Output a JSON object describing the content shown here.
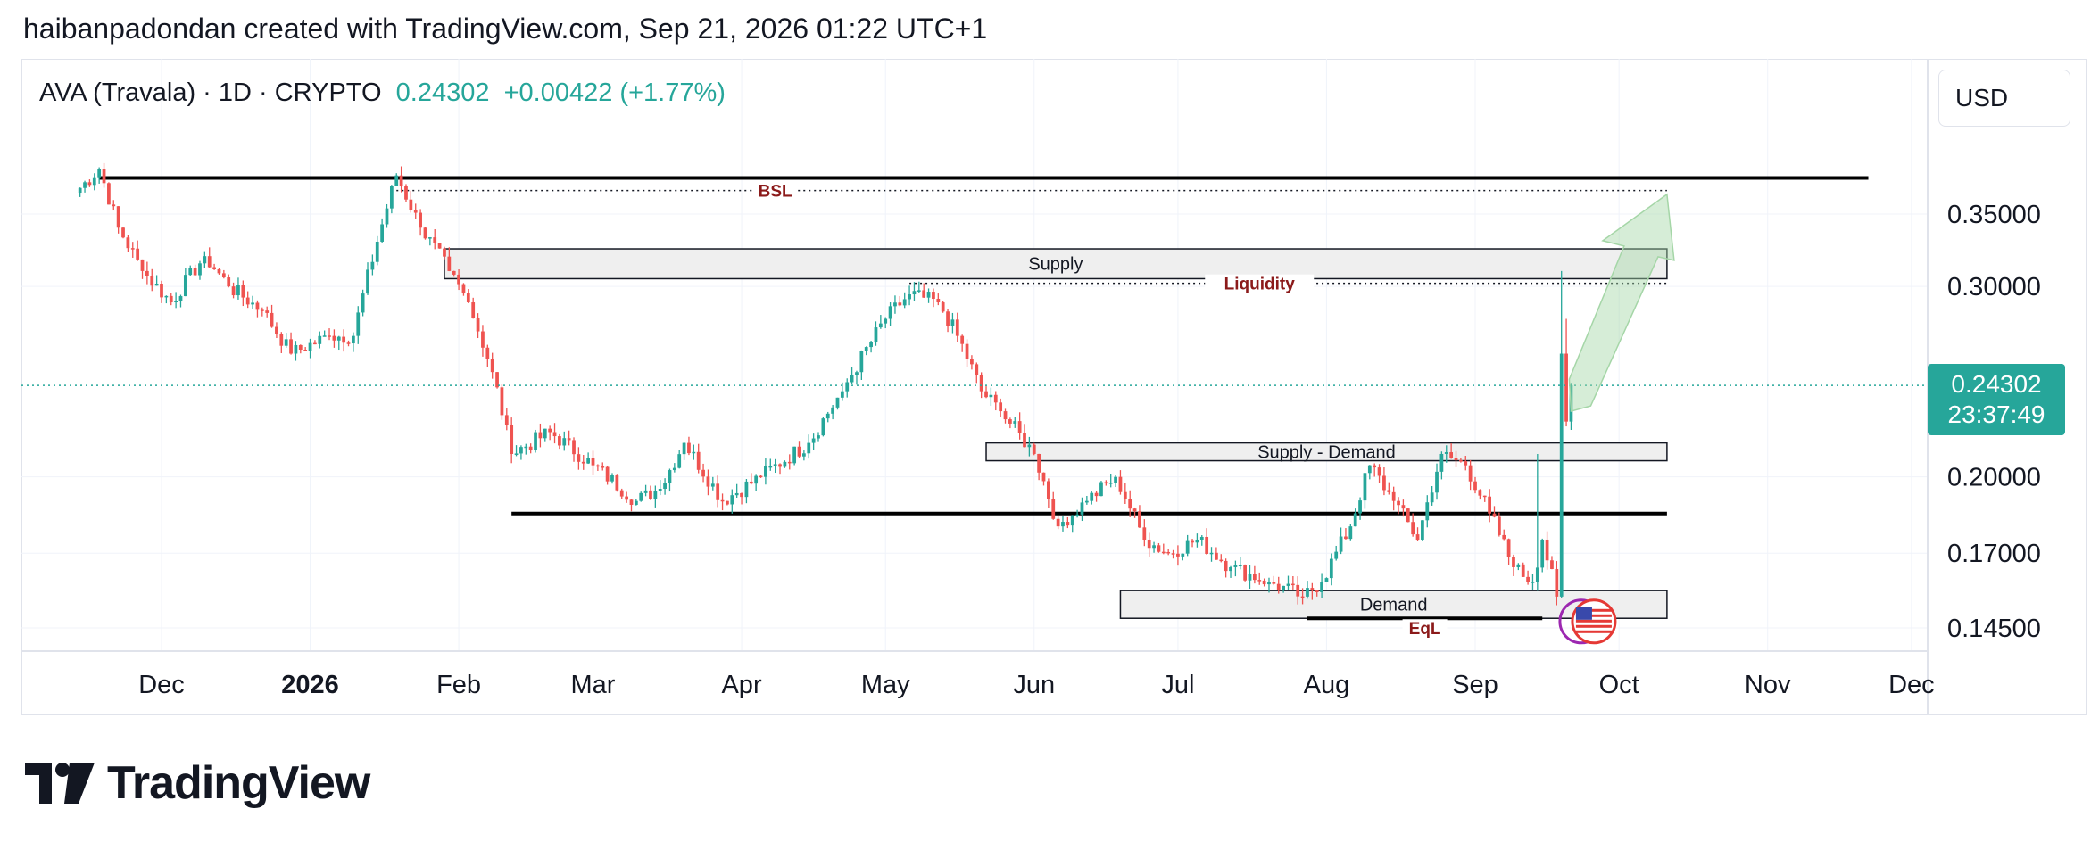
{
  "header": {
    "attribution": "haibanpadondan created with TradingView.com, Sep 21, 2026 01:22 UTC+1"
  },
  "symbol": {
    "name": "AVA (Travala) · 1D · CRYPTO",
    "price": "0.24302",
    "change": "+0.00422 (+1.77%)"
  },
  "currency": "USD",
  "price_badge": {
    "price": "0.24302",
    "countdown": "23:37:49"
  },
  "footer": {
    "brand": "TradingView"
  },
  "annotations": {
    "bsl": "BSL",
    "supply": "Supply",
    "liquidity": "Liquidity",
    "supply_demand": "Supply - Demand",
    "demand": "Demand",
    "eql": "EqL"
  },
  "colors": {
    "up": "#26a69a",
    "down": "#ef5350",
    "annotation_text": "#8b1a1a",
    "arrow": "#a5d6a7"
  },
  "chart_data": {
    "type": "candlestick",
    "price_axis": {
      "ticks": [
        0.35,
        0.3,
        0.2,
        0.17,
        0.145
      ],
      "labels": [
        "0.35000",
        "0.30000",
        "0.20000",
        "0.17000",
        "0.14500"
      ],
      "scale": "log"
    },
    "time_axis": {
      "labels": [
        "Dec",
        "2026",
        "Feb",
        "Mar",
        "Apr",
        "May",
        "Jun",
        "Jul",
        "Aug",
        "Sep",
        "Oct",
        "Nov",
        "Dec"
      ]
    },
    "last_price": 0.24302,
    "anchors": [
      [
        "2025-11-14",
        0.37
      ],
      [
        "2025-11-18",
        0.385
      ],
      [
        "2025-11-22",
        0.34
      ],
      [
        "2025-11-27",
        0.31
      ],
      [
        "2025-12-03",
        0.29
      ],
      [
        "2025-12-10",
        0.32
      ],
      [
        "2025-12-15",
        0.3
      ],
      [
        "2025-12-22",
        0.285
      ],
      [
        "2025-12-28",
        0.26
      ],
      [
        "2026-01-05",
        0.27
      ],
      [
        "2026-01-10",
        0.27
      ],
      [
        "2026-01-15",
        0.33
      ],
      [
        "2026-01-19",
        0.38
      ],
      [
        "2026-01-24",
        0.34
      ],
      [
        "2026-01-30",
        0.31
      ],
      [
        "2026-02-03",
        0.29
      ],
      [
        "2026-02-08",
        0.25
      ],
      [
        "2026-02-12",
        0.21
      ],
      [
        "2026-02-20",
        0.22
      ],
      [
        "2026-03-01",
        0.205
      ],
      [
        "2026-03-10",
        0.19
      ],
      [
        "2026-03-15",
        0.195
      ],
      [
        "2026-03-20",
        0.215
      ],
      [
        "2026-03-28",
        0.19
      ],
      [
        "2026-04-05",
        0.2
      ],
      [
        "2026-04-15",
        0.215
      ],
      [
        "2026-04-22",
        0.24
      ],
      [
        "2026-05-01",
        0.28
      ],
      [
        "2026-05-06",
        0.295
      ],
      [
        "2026-05-12",
        0.29
      ],
      [
        "2026-05-16",
        0.27
      ],
      [
        "2026-05-21",
        0.24
      ],
      [
        "2026-05-25",
        0.23
      ],
      [
        "2026-06-01",
        0.21
      ],
      [
        "2026-06-06",
        0.18
      ],
      [
        "2026-06-12",
        0.19
      ],
      [
        "2026-06-18",
        0.2
      ],
      [
        "2026-06-24",
        0.175
      ],
      [
        "2026-06-29",
        0.17
      ],
      [
        "2026-07-05",
        0.175
      ],
      [
        "2026-07-12",
        0.165
      ],
      [
        "2026-07-20",
        0.16
      ],
      [
        "2026-07-27",
        0.155
      ],
      [
        "2026-07-31",
        0.16
      ],
      [
        "2026-08-06",
        0.18
      ],
      [
        "2026-08-10",
        0.205
      ],
      [
        "2026-08-15",
        0.19
      ],
      [
        "2026-08-20",
        0.175
      ],
      [
        "2026-08-25",
        0.21
      ],
      [
        "2026-08-30",
        0.205
      ],
      [
        "2026-09-04",
        0.185
      ],
      [
        "2026-09-09",
        0.165
      ],
      [
        "2026-09-13",
        0.16
      ],
      [
        "2026-09-15",
        0.175
      ],
      [
        "2026-09-18",
        0.155
      ],
      [
        "2026-09-19",
        0.26
      ],
      [
        "2026-09-20",
        0.225
      ],
      [
        "2026-09-21",
        0.24302
      ]
    ],
    "spike_highs": [
      [
        "2026-09-14",
        0.21
      ],
      [
        "2026-09-19",
        0.31
      ],
      [
        "2026-09-20",
        0.28
      ]
    ],
    "levels": [
      {
        "label": "BSL",
        "price": 0.368,
        "from": "2026-01-19",
        "to": "2026-10-11",
        "style": "dotted"
      },
      {
        "label": "Liquidity",
        "price": 0.302,
        "from": "2026-05-06",
        "to": "2026-10-11",
        "style": "dotted"
      },
      {
        "label": "",
        "price": 0.378,
        "from": "2025-11-18",
        "to": "2026-11-22",
        "style": "solid"
      },
      {
        "label": "",
        "price": 0.185,
        "from": "2026-02-12",
        "to": "2026-10-11",
        "style": "solid"
      },
      {
        "label": "EqL",
        "price": 0.148,
        "from": "2026-07-28",
        "to": "2026-09-15",
        "style": "solid"
      }
    ],
    "zones": [
      {
        "label": "Supply",
        "top": 0.325,
        "bottom": 0.305,
        "from": "2026-01-29",
        "to": "2026-10-11"
      },
      {
        "label": "Supply - Demand",
        "top": 0.215,
        "bottom": 0.207,
        "from": "2026-05-22",
        "to": "2026-10-11"
      },
      {
        "label": "Demand",
        "top": 0.157,
        "bottom": 0.148,
        "from": "2026-06-19",
        "to": "2026-10-11"
      }
    ]
  }
}
